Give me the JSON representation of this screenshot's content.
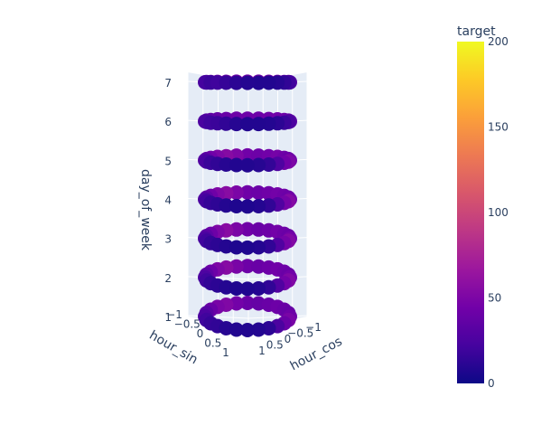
{
  "chart_data": {
    "type": "scatter3d",
    "axes": {
      "x": {
        "label": "hour_sin",
        "ticks": [
          "1",
          "0.5",
          "0",
          "−0.5",
          "−1"
        ]
      },
      "y": {
        "label": "hour_cos",
        "ticks": [
          "1",
          "0.5",
          "0",
          "−0.5",
          "−1"
        ]
      },
      "z": {
        "label": "day_of_week",
        "ticks": [
          "1",
          "2",
          "3",
          "4",
          "5",
          "6",
          "7"
        ],
        "range": [
          1,
          7
        ]
      }
    },
    "colorbar": {
      "title": "target",
      "ticks": [
        "0",
        "50",
        "100",
        "150",
        "200"
      ],
      "range": [
        0,
        200
      ],
      "colorscale": [
        "#0d0887",
        "#46039f",
        "#7201a8",
        "#9c179e",
        "#bd3786",
        "#d8576b",
        "#ed7953",
        "#fb9f3a",
        "#fdca26",
        "#f0f921"
      ]
    },
    "series": {
      "points_per_day": 24,
      "days": [
        1,
        2,
        3,
        4,
        5,
        6,
        7
      ],
      "target_values": [
        [
          14,
          10,
          8,
          8,
          9,
          12,
          25,
          40,
          48,
          42,
          38,
          40,
          42,
          40,
          38,
          40,
          45,
          52,
          48,
          40,
          32,
          25,
          20,
          16
        ],
        [
          12,
          9,
          7,
          7,
          9,
          14,
          28,
          45,
          52,
          44,
          40,
          42,
          44,
          42,
          40,
          42,
          48,
          55,
          50,
          42,
          34,
          26,
          20,
          15
        ],
        [
          12,
          9,
          7,
          7,
          9,
          14,
          28,
          46,
          53,
          45,
          40,
          42,
          45,
          42,
          40,
          43,
          49,
          56,
          50,
          42,
          34,
          26,
          20,
          15
        ],
        [
          13,
          9,
          7,
          7,
          9,
          14,
          28,
          46,
          54,
          45,
          41,
          43,
          45,
          43,
          41,
          43,
          49,
          56,
          51,
          43,
          35,
          27,
          21,
          16
        ],
        [
          14,
          10,
          8,
          8,
          10,
          15,
          27,
          44,
          50,
          44,
          40,
          43,
          46,
          44,
          42,
          44,
          50,
          55,
          50,
          44,
          37,
          30,
          24,
          18
        ],
        [
          18,
          14,
          10,
          8,
          8,
          9,
          12,
          18,
          25,
          32,
          38,
          42,
          44,
          43,
          42,
          42,
          42,
          40,
          38,
          35,
          32,
          28,
          24,
          20
        ],
        [
          20,
          16,
          12,
          9,
          8,
          8,
          10,
          14,
          20,
          28,
          35,
          40,
          42,
          42,
          40,
          40,
          40,
          38,
          36,
          33,
          30,
          26,
          22,
          18
        ]
      ]
    }
  }
}
